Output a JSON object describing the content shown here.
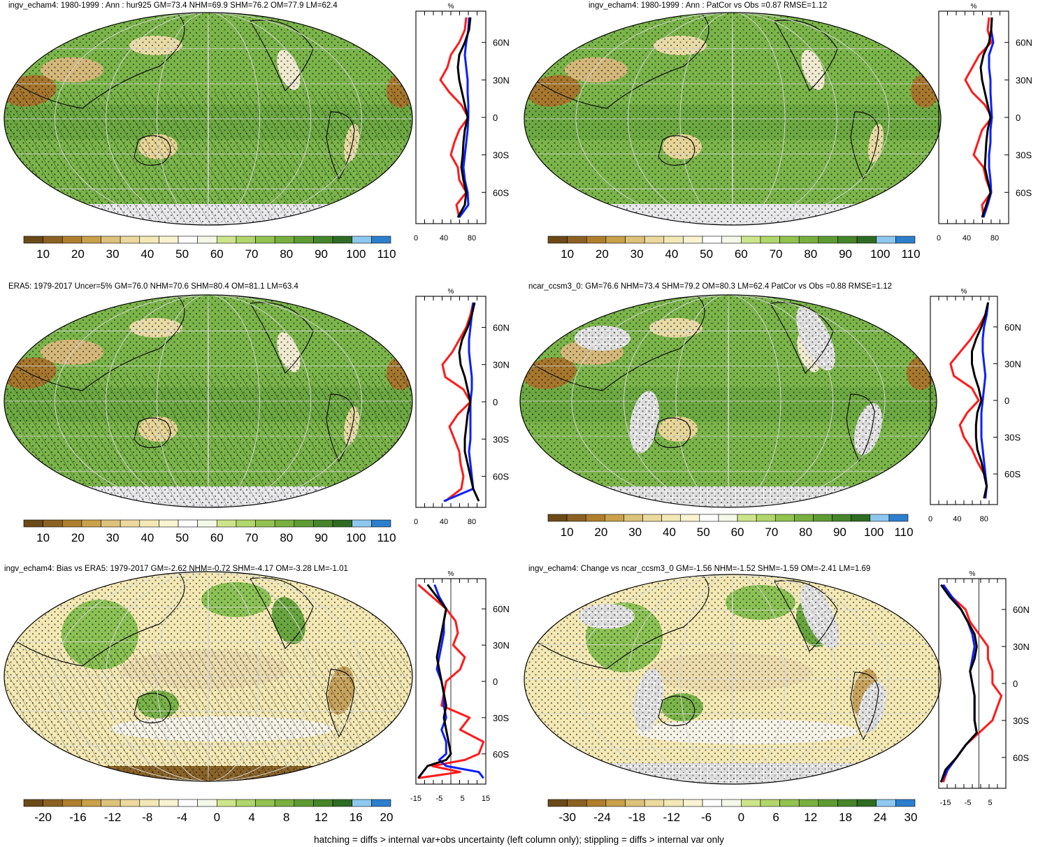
{
  "footer": "hatching = diffs > internal var+obs uncertainty (left column only); stippling = diffs > internal var only",
  "colors": {
    "line_red": "#ff1a1a",
    "line_blue": "#0a1fff",
    "line_black": "#000000",
    "ocean_green": "#6bb044",
    "land_brown": "#c8a45e",
    "missing": "#d9d9d9"
  },
  "palettes": {
    "abs": [
      "#6b4a18",
      "#8c6224",
      "#b07f2e",
      "#c9a14a",
      "#dcc27a",
      "#ecd99e",
      "#f3e8b6",
      "#f9f3d2",
      "#ffffff",
      "#f4f8e8",
      "#cde58a",
      "#b1d66b",
      "#92c250",
      "#78b03f",
      "#5e9c33",
      "#46852a",
      "#2f6c23",
      "#8ec8f0",
      "#2d7fce"
    ],
    "bias": [
      "#6b4a18",
      "#8c6224",
      "#b07f2e",
      "#c9a14a",
      "#dcc27a",
      "#ecd99e",
      "#f3e8b6",
      "#f9f3d2",
      "#ffffff",
      "#f4f8e8",
      "#cde58a",
      "#b1d66b",
      "#92c250",
      "#78b03f",
      "#5e9c33",
      "#46852a",
      "#2f6c23",
      "#8ec8f0",
      "#2d7fce"
    ]
  },
  "panels": [
    {
      "title": "ingv_echam4: 1980-1999 : Ann : hur925 GM=73.4 NHM=69.9 SHM=76.2 OM=77.9 LM=62.4",
      "map_style": "abs",
      "hatch": true,
      "missing_land": false,
      "colorbar": [
        "10",
        "20",
        "30",
        "40",
        "50",
        "60",
        "70",
        "80",
        "90",
        "100",
        "110"
      ],
      "profile": {
        "top_label": "%",
        "xticks": [
          "0",
          "40",
          "80"
        ],
        "xmin": 0,
        "xmax": 100,
        "zero_line": false,
        "yticks": [
          "60N",
          "30N",
          "0",
          "30S",
          "60S"
        ],
        "lat": [
          80,
          70,
          60,
          50,
          40,
          30,
          20,
          10,
          0,
          -10,
          -20,
          -30,
          -40,
          -50,
          -60,
          -70,
          -80
        ],
        "series": [
          {
            "name": "red",
            "values": [
              72,
              70,
              62,
              50,
              45,
              35,
              48,
              65,
              75,
              62,
              55,
              50,
              60,
              62,
              72,
              58,
              62
            ]
          },
          {
            "name": "blue",
            "values": [
              76,
              75,
              72,
              70,
              72,
              74,
              74,
              75,
              75,
              74,
              72,
              70,
              68,
              70,
              74,
              75,
              62
            ]
          },
          {
            "name": "black",
            "values": [
              78,
              76,
              70,
              62,
              60,
              62,
              66,
              70,
              74,
              70,
              68,
              67,
              65,
              68,
              72,
              70,
              60
            ]
          }
        ]
      }
    },
    {
      "title": "ingv_echam4: 1980-1999 : Ann : PatCor vs Obs =0.87 RMSE=1.12",
      "map_style": "abs",
      "hatch": false,
      "missing_land": false,
      "colorbar": [
        "10",
        "20",
        "30",
        "40",
        "50",
        "60",
        "70",
        "80",
        "90",
        "100",
        "110"
      ],
      "profile": {
        "top_label": "%",
        "xticks": [
          "0",
          "40",
          "80"
        ],
        "xmin": 0,
        "xmax": 100,
        "zero_line": false,
        "yticks": [
          "60N",
          "30N",
          "0",
          "30S",
          "60S"
        ],
        "lat": [
          80,
          70,
          60,
          50,
          40,
          30,
          20,
          10,
          0,
          -10,
          -20,
          -30,
          -40,
          -50,
          -60,
          -70,
          -80
        ],
        "series": [
          {
            "name": "red",
            "values": [
              72,
              70,
              75,
              58,
              48,
              38,
              48,
              66,
              76,
              62,
              56,
              50,
              64,
              68,
              75,
              62,
              64
            ]
          },
          {
            "name": "blue",
            "values": [
              76,
              75,
              78,
              72,
              72,
              74,
              74,
              75,
              76,
              74,
              74,
              72,
              72,
              74,
              75,
              70,
              64
            ]
          },
          {
            "name": "black",
            "values": [
              76,
              75,
              72,
              64,
              60,
              62,
              66,
              70,
              74,
              70,
              68,
              67,
              66,
              70,
              74,
              68,
              62
            ]
          }
        ]
      }
    },
    {
      "title": "ERA5: 1979-2017 Uncer=5% GM=76.0 NHM=70.6 SHM=80.4 OM=81.1 LM=63.4",
      "map_style": "abs",
      "hatch": true,
      "missing_land": false,
      "colorbar": [
        "10",
        "20",
        "30",
        "40",
        "50",
        "60",
        "70",
        "80",
        "90",
        "100",
        "110"
      ],
      "profile": {
        "top_label": "%",
        "xticks": [
          "0",
          "40",
          "80"
        ],
        "xmin": 0,
        "xmax": 100,
        "zero_line": false,
        "yticks": [
          "60N",
          "30N",
          "0",
          "30S",
          "60S"
        ],
        "lat": [
          80,
          70,
          60,
          50,
          40,
          30,
          20,
          10,
          0,
          -10,
          -20,
          -30,
          -40,
          -50,
          -60,
          -70,
          -80
        ],
        "series": [
          {
            "name": "red",
            "values": [
              82,
              78,
              72,
              62,
              52,
              38,
              42,
              68,
              78,
              60,
              48,
              55,
              62,
              64,
              68,
              65,
              42
            ]
          },
          {
            "name": "blue",
            "values": [
              82,
              80,
              78,
              76,
              76,
              78,
              80,
              80,
              78,
              78,
              78,
              78,
              76,
              78,
              80,
              82,
              40
            ]
          },
          {
            "name": "black",
            "values": [
              84,
              80,
              74,
              66,
              62,
              64,
              70,
              74,
              78,
              74,
              72,
              70,
              70,
              74,
              78,
              82,
              90
            ]
          }
        ]
      }
    },
    {
      "title": "ncar_ccsm3_0: GM=76.6 NHM=73.4 SHM=79.2 OM=80.3 LM=62.4 PatCor vs Obs =0.88 RMSE=1.12",
      "map_style": "abs",
      "hatch": false,
      "missing_land": true,
      "colorbar": [
        "10",
        "20",
        "30",
        "40",
        "50",
        "60",
        "70",
        "80",
        "90",
        "100",
        "110"
      ],
      "profile": {
        "top_label": "%",
        "xticks": [
          "0",
          "40",
          "80"
        ],
        "xmin": 0,
        "xmax": 100,
        "zero_line": false,
        "yticks": [
          "60N",
          "30N",
          "0",
          "30S",
          "60S"
        ],
        "lat": [
          80,
          70,
          60,
          50,
          40,
          30,
          20,
          10,
          0,
          -10,
          -20,
          -30,
          -40,
          -50,
          -60,
          -70,
          -80
        ],
        "series": [
          {
            "name": "red",
            "values": [
              86,
              82,
              72,
              60,
              45,
              30,
              35,
              62,
              72,
              55,
              44,
              50,
              62,
              70,
              80,
              84,
              82
            ]
          },
          {
            "name": "blue",
            "values": [
              86,
              84,
              80,
              78,
              78,
              80,
              82,
              80,
              78,
              76,
              76,
              76,
              78,
              80,
              82,
              84,
              82
            ]
          },
          {
            "name": "black",
            "values": [
              86,
              82,
              76,
              68,
              62,
              62,
              66,
              72,
              76,
              70,
              68,
              68,
              70,
              76,
              80,
              84,
              80
            ]
          }
        ]
      }
    },
    {
      "title": "ingv_echam4: Bias vs ERA5: 1979-2017 GM=-2.62 NHM=-0.72 SHM=-4.17 OM=-3.28 LM=-1.01",
      "map_style": "bias",
      "hatch": true,
      "missing_land": false,
      "colorbar": [
        "-20",
        "-16",
        "-12",
        "-8",
        "-4",
        "0",
        "4",
        "8",
        "12",
        "16",
        "20"
      ],
      "profile": {
        "top_label": "%",
        "xticks": [
          "-15",
          "-5",
          "5",
          "15"
        ],
        "xmin": -15,
        "xmax": 15,
        "zero_line": true,
        "yticks": [
          "60N",
          "30N",
          "0",
          "30S",
          "60S"
        ],
        "lat": [
          80,
          70,
          60,
          50,
          40,
          30,
          20,
          10,
          0,
          -10,
          -20,
          -30,
          -40,
          -50,
          -60,
          -65,
          -70,
          -75,
          -80
        ],
        "series": [
          {
            "name": "red",
            "values": [
              -14,
              -8,
              -2,
              2,
              3,
              1,
              6,
              4,
              -2,
              -3,
              -4,
              8,
              4,
              14,
              12,
              6,
              -8,
              4,
              -14
            ]
          },
          {
            "name": "blue",
            "values": [
              -7,
              -5,
              -2,
              -3,
              -3,
              -4,
              -5,
              -6,
              -4,
              -3,
              -3,
              -2,
              -4,
              -2,
              -2,
              -5,
              -2,
              12,
              14
            ]
          },
          {
            "name": "black",
            "values": [
              -10,
              -6,
              -2,
              -3,
              -4,
              -5,
              -6,
              -5,
              -4,
              -3,
              -2,
              -3,
              -2,
              -1,
              0,
              -2,
              -10,
              -12,
              -14
            ]
          }
        ]
      }
    },
    {
      "title": "ingv_echam4: Change vs ncar_ccsm3_0 GM=-1.56 NHM=-1.52 SHM=-1.59 OM=-2.41 LM=1.69",
      "map_style": "bias",
      "hatch": false,
      "missing_land": true,
      "colorbar": [
        "-30",
        "-24",
        "-18",
        "-12",
        "-6",
        "0",
        "6",
        "12",
        "18",
        "24",
        "30"
      ],
      "profile": {
        "top_label": "%",
        "xticks": [
          "-15",
          "-5",
          "5"
        ],
        "xmin": -18,
        "xmax": 12,
        "zero_line": true,
        "yticks": [
          "60N",
          "30N",
          "0",
          "30S",
          "60S"
        ],
        "lat": [
          80,
          70,
          60,
          50,
          40,
          30,
          20,
          10,
          0,
          -10,
          -20,
          -30,
          -40,
          -50,
          -60,
          -70,
          -80
        ],
        "series": [
          {
            "name": "red",
            "values": [
              -16,
              -12,
              -6,
              -4,
              0,
              4,
              4,
              6,
              6,
              10,
              8,
              6,
              0,
              -6,
              -10,
              -14,
              -16
            ]
          },
          {
            "name": "blue",
            "values": [
              -16,
              -12,
              -8,
              -5,
              -3,
              -2,
              -3,
              -4,
              -3,
              -2,
              -2,
              -2,
              -1,
              -6,
              -10,
              -14,
              -17
            ]
          },
          {
            "name": "black",
            "values": [
              -17,
              -13,
              -8,
              -5,
              -2,
              -1,
              -2,
              -4,
              -3,
              -2,
              -2,
              -2,
              -1,
              -6,
              -10,
              -15,
              -17
            ]
          }
        ]
      }
    }
  ]
}
